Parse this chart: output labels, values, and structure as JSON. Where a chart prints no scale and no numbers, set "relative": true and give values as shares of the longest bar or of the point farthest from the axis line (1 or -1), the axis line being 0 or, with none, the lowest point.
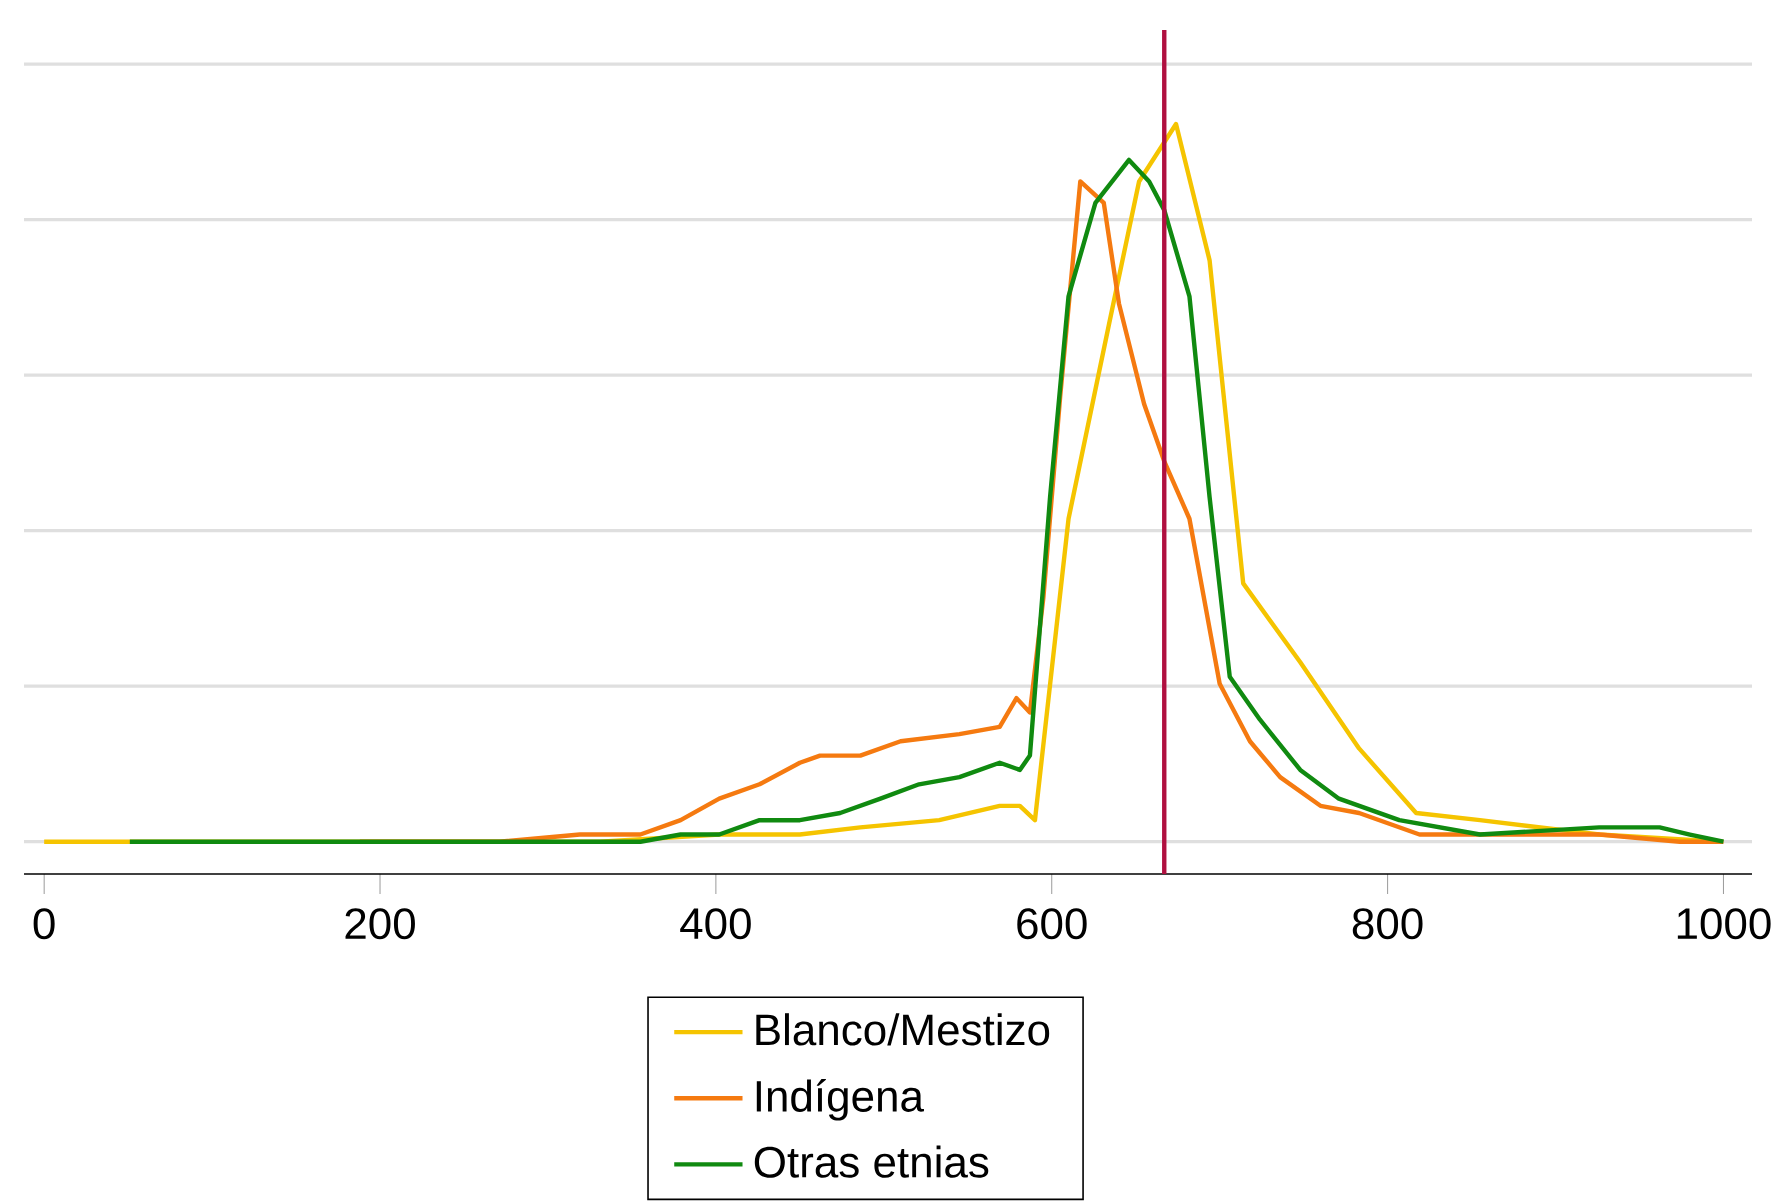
{
  "chart_data": {
    "type": "line",
    "relative": true,
    "xlim": [
      -12,
      1017
    ],
    "xticks": [
      0,
      200,
      400,
      600,
      800,
      1000
    ],
    "grid": "y",
    "legend": "bottom",
    "tick_labels": "x",
    "ref_lines": [
      {
        "axis": "x",
        "value": 667,
        "color": "#b01040"
      }
    ],
    "series": [
      {
        "name": "Blanco/Mestizo",
        "color": "#f5c400",
        "x": [
          0,
          93,
          212,
          331,
          402,
          450,
          486,
          533,
          569,
          581,
          590,
          610,
          634,
          652,
          674,
          694,
          714,
          748,
          783,
          817,
          855,
          926,
          998
        ],
        "values": [
          0,
          0,
          0,
          0,
          0.01,
          0.01,
          0.02,
          0.03,
          0.05,
          0.05,
          0.03,
          0.45,
          0.72,
          0.92,
          1.0,
          0.81,
          0.36,
          0.25,
          0.13,
          0.04,
          0.03,
          0.01,
          0
        ]
      },
      {
        "name": "Indígena",
        "color": "#f57a10",
        "x": [
          188,
          271,
          319,
          355,
          379,
          402,
          426,
          450,
          462,
          486,
          510,
          545,
          569,
          579,
          587,
          595,
          605,
          617,
          631,
          640,
          655,
          667,
          682,
          700,
          718,
          736,
          760,
          783,
          819,
          867,
          926,
          974,
          1000
        ],
        "values": [
          0,
          0,
          0.01,
          0.01,
          0.03,
          0.06,
          0.08,
          0.11,
          0.12,
          0.12,
          0.14,
          0.15,
          0.16,
          0.2,
          0.18,
          0.34,
          0.62,
          0.92,
          0.89,
          0.75,
          0.61,
          0.53,
          0.45,
          0.22,
          0.14,
          0.09,
          0.05,
          0.04,
          0.01,
          0.01,
          0.01,
          0,
          0
        ]
      },
      {
        "name": "Otras etnias",
        "color": "#108a10",
        "x": [
          51,
          152,
          271,
          355,
          379,
          402,
          426,
          450,
          474,
          498,
          521,
          545,
          569,
          581,
          587,
          599,
          610,
          626,
          646,
          658,
          667,
          682,
          694,
          706,
          724,
          748,
          771,
          807,
          855,
          926,
          962,
          980,
          1000
        ],
        "values": [
          0,
          0,
          0,
          0,
          0.01,
          0.01,
          0.03,
          0.03,
          0.04,
          0.06,
          0.08,
          0.09,
          0.11,
          0.1,
          0.12,
          0.48,
          0.76,
          0.89,
          0.95,
          0.92,
          0.88,
          0.76,
          0.48,
          0.23,
          0.17,
          0.1,
          0.06,
          0.03,
          0.01,
          0.02,
          0.02,
          0.01,
          0
        ]
      }
    ]
  }
}
